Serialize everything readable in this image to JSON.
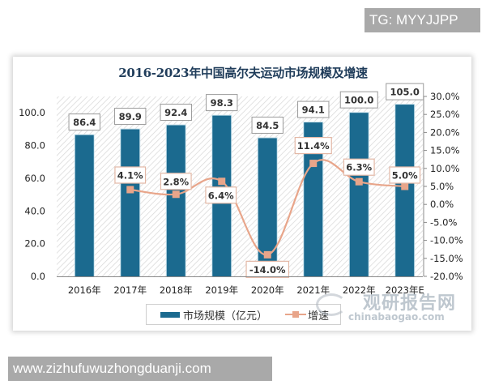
{
  "overlays": {
    "tg_badge": "TG: MYYJJPP",
    "url_badge": "www.zizhufuwuzhongduanji.com"
  },
  "watermark": {
    "cn": "观研报告网",
    "en": "chinabaogao.com"
  },
  "legend": {
    "bar_label": "市场规模（亿元）",
    "line_label": "增速"
  },
  "colors": {
    "bar": "#1b6a8f",
    "line": "#e8a58a",
    "marker": "#e8a58a"
  },
  "chart_data": {
    "type": "bar",
    "title": "2016-2023年中国高尔夫运动市场规模及增速",
    "xlabel": "",
    "ylabel": "",
    "categories": [
      "2016年",
      "2017年",
      "2018年",
      "2019年",
      "2020年",
      "2021年",
      "2022年",
      "2023年E"
    ],
    "series": [
      {
        "name": "市场规模（亿元）",
        "type": "bar",
        "axis": "left",
        "values": [
          86.4,
          89.9,
          92.4,
          98.3,
          84.5,
          94.1,
          100.0,
          105.0
        ],
        "labels": [
          "86.4",
          "89.9",
          "92.4",
          "98.3",
          "84.5",
          "94.1",
          "100.0",
          "105.0"
        ]
      },
      {
        "name": "增速",
        "type": "line",
        "axis": "right",
        "values": [
          null,
          4.1,
          2.8,
          6.4,
          -14.0,
          11.4,
          6.3,
          5.0
        ],
        "labels": [
          "",
          "4.1%",
          "2.8%",
          "6.4%",
          "-14.0%",
          "11.4%",
          "6.3%",
          "5.0%"
        ]
      }
    ],
    "left_axis": {
      "ylim": [
        0,
        110
      ],
      "ticks": [
        "0.0",
        "20.0",
        "40.0",
        "60.0",
        "80.0",
        "100.0"
      ],
      "tick_values": [
        0,
        20,
        40,
        60,
        80,
        100
      ]
    },
    "right_axis": {
      "ylim": [
        -20,
        30
      ],
      "ticks": [
        "-20.0%",
        "-15.0%",
        "-10.0%",
        "-5.0%",
        "0.0%",
        "5.0%",
        "10.0%",
        "15.0%",
        "20.0%",
        "25.0%",
        "30.0%"
      ],
      "tick_values": [
        -20,
        -15,
        -10,
        -5,
        0,
        5,
        10,
        15,
        20,
        25,
        30
      ]
    },
    "grid": false,
    "legend_position": "bottom"
  }
}
